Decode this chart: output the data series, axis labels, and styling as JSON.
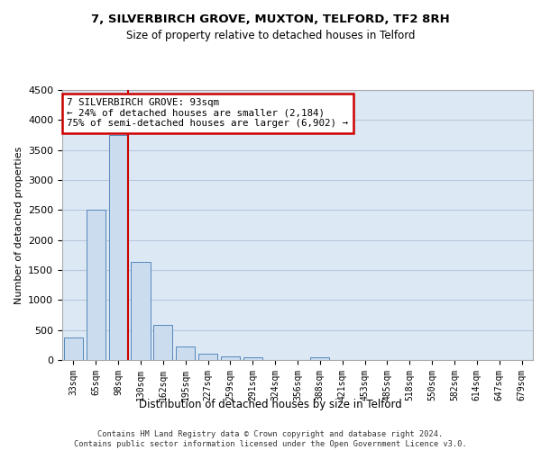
{
  "title_line1": "7, SILVERBIRCH GROVE, MUXTON, TELFORD, TF2 8RH",
  "title_line2": "Size of property relative to detached houses in Telford",
  "xlabel": "Distribution of detached houses by size in Telford",
  "ylabel": "Number of detached properties",
  "categories": [
    "33sqm",
    "65sqm",
    "98sqm",
    "130sqm",
    "162sqm",
    "195sqm",
    "227sqm",
    "259sqm",
    "291sqm",
    "324sqm",
    "356sqm",
    "388sqm",
    "421sqm",
    "453sqm",
    "485sqm",
    "518sqm",
    "550sqm",
    "582sqm",
    "614sqm",
    "647sqm",
    "679sqm"
  ],
  "values": [
    370,
    2500,
    3750,
    1640,
    590,
    225,
    110,
    65,
    40,
    0,
    0,
    50,
    0,
    0,
    0,
    0,
    0,
    0,
    0,
    0,
    0
  ],
  "bar_color": "#ccdcef",
  "bar_edge_color": "#5588bb",
  "vline_color": "#cc0000",
  "annotation_text": "7 SILVERBIRCH GROVE: 93sqm\n← 24% of detached houses are smaller (2,184)\n75% of semi-detached houses are larger (6,902) →",
  "annotation_box_color": "#cc0000",
  "ylim": [
    0,
    4500
  ],
  "yticks": [
    0,
    500,
    1000,
    1500,
    2000,
    2500,
    3000,
    3500,
    4000,
    4500
  ],
  "footer_text": "Contains HM Land Registry data © Crown copyright and database right 2024.\nContains public sector information licensed under the Open Government Licence v3.0.",
  "bg_color": "#dde8f5",
  "grid_color": "#b8c8dc"
}
